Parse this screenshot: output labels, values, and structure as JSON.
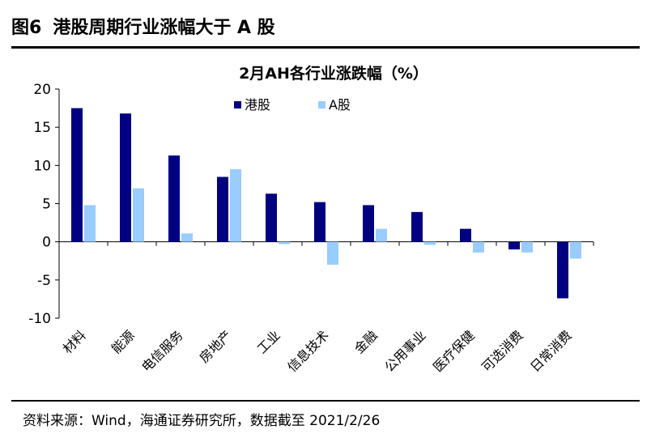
{
  "figure": {
    "number": "图6",
    "title": "港股周期行业涨幅大于 A 股",
    "source": "资料来源：Wind，海通证券研究所，数据截至 2021/2/26"
  },
  "chart_data": {
    "type": "bar",
    "title": "2月AH各行业涨跌幅（%）",
    "categories": [
      "材料",
      "能源",
      "电信服务",
      "房地产",
      "工业",
      "信息技术",
      "金融",
      "公用事业",
      "医疗保健",
      "可选消费",
      "日常消费"
    ],
    "series": [
      {
        "name": "港股",
        "color": "#000080",
        "values": [
          17.5,
          16.8,
          11.3,
          8.5,
          6.3,
          5.2,
          4.8,
          3.9,
          1.7,
          -1.0,
          -7.4
        ]
      },
      {
        "name": "A股",
        "color": "#99ccff",
        "values": [
          4.8,
          7.0,
          1.1,
          9.5,
          -0.3,
          -3.0,
          1.7,
          -0.4,
          -1.4,
          -1.4,
          -2.2
        ]
      }
    ],
    "ylim": [
      -10,
      20
    ],
    "yticks": [
      -10,
      -5,
      0,
      5,
      10,
      15,
      20
    ],
    "grid": false,
    "legend_position": "top-right"
  }
}
